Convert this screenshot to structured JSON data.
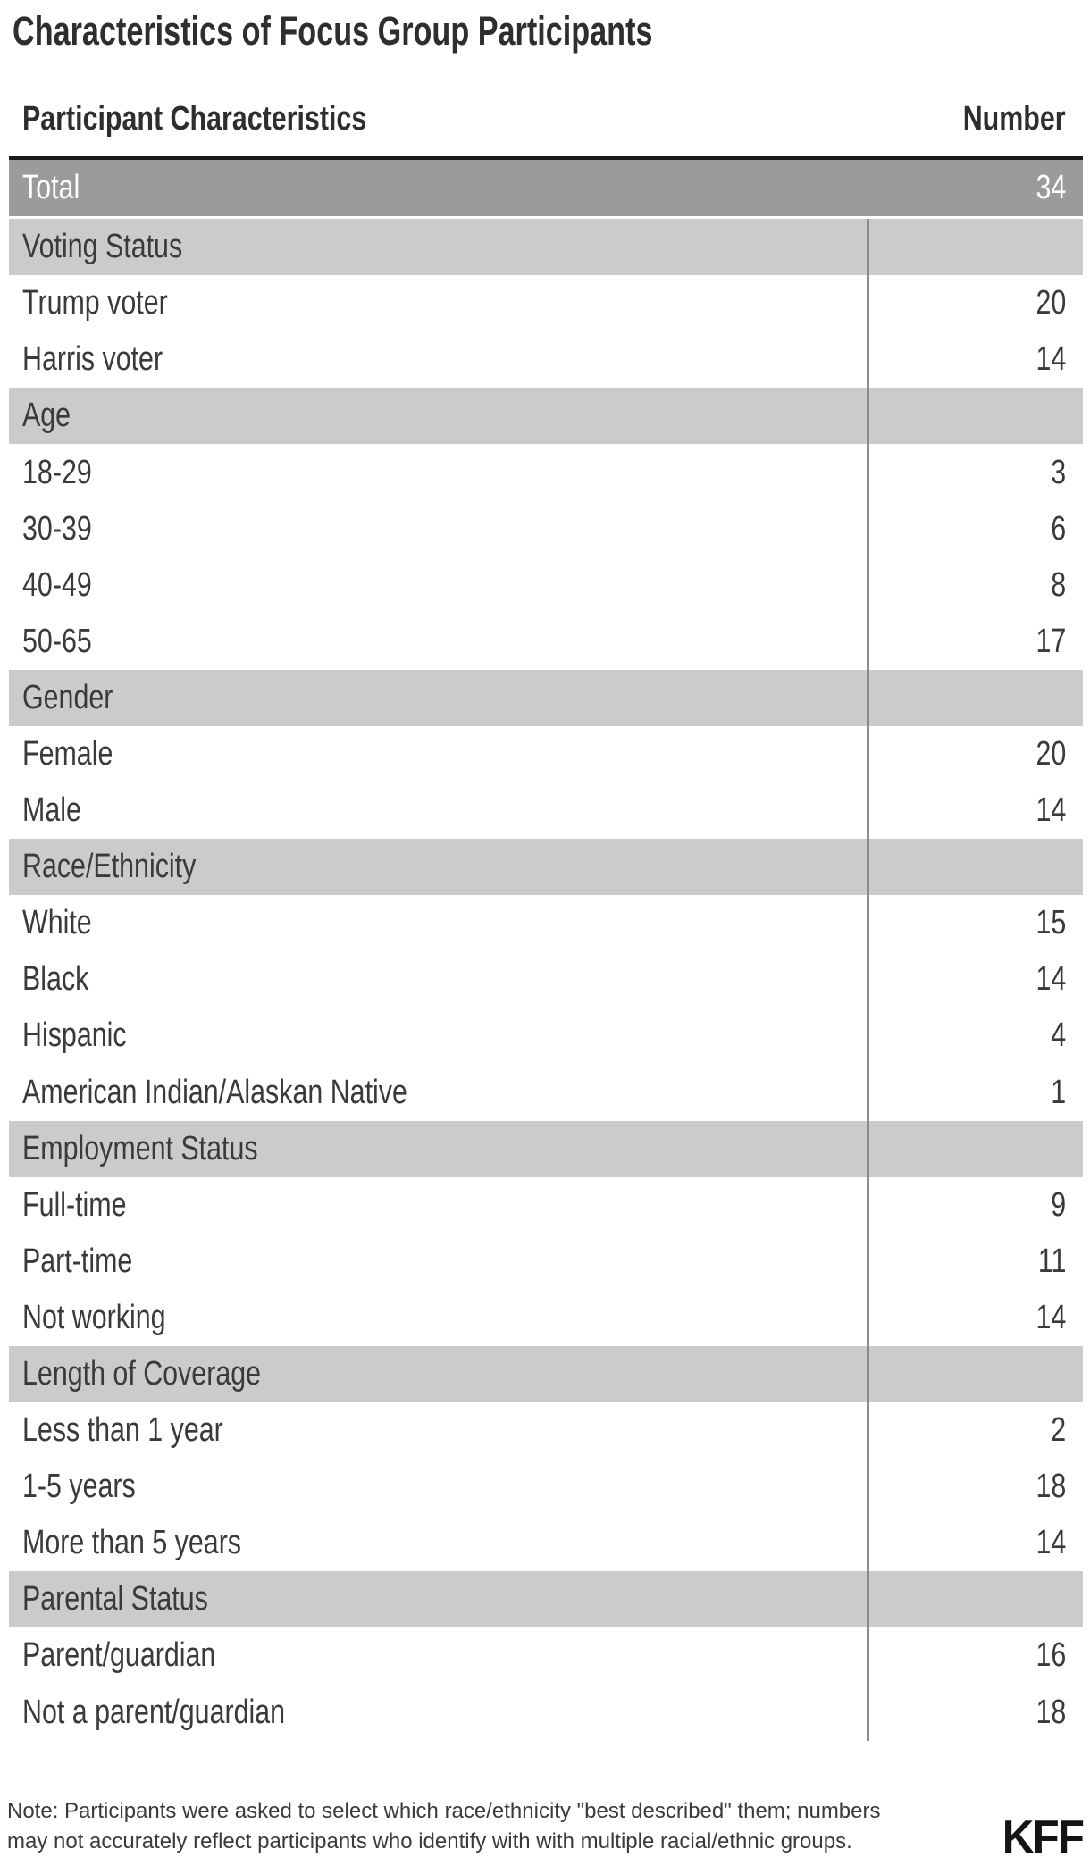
{
  "title": "Characteristics of Focus Group Participants",
  "table": {
    "col_label": "Participant Characteristics",
    "col_number": "Number",
    "total": {
      "label": "Total",
      "value": "34"
    },
    "rows": [
      {
        "type": "section",
        "label": "Voting Status",
        "value": ""
      },
      {
        "type": "data",
        "label": "Trump voter",
        "value": "20"
      },
      {
        "type": "data",
        "label": "Harris voter",
        "value": "14"
      },
      {
        "type": "section",
        "label": "Age",
        "value": ""
      },
      {
        "type": "data",
        "label": "18-29",
        "value": "3"
      },
      {
        "type": "data",
        "label": "30-39",
        "value": "6"
      },
      {
        "type": "data",
        "label": "40-49",
        "value": "8"
      },
      {
        "type": "data",
        "label": "50-65",
        "value": "17"
      },
      {
        "type": "section",
        "label": "Gender",
        "value": ""
      },
      {
        "type": "data",
        "label": "Female",
        "value": "20"
      },
      {
        "type": "data",
        "label": "Male",
        "value": "14"
      },
      {
        "type": "section",
        "label": "Race/Ethnicity",
        "value": ""
      },
      {
        "type": "data",
        "label": "White",
        "value": "15"
      },
      {
        "type": "data",
        "label": "Black",
        "value": "14"
      },
      {
        "type": "data",
        "label": "Hispanic",
        "value": "4"
      },
      {
        "type": "data",
        "label": "American Indian/Alaskan Native",
        "value": "1"
      },
      {
        "type": "section",
        "label": "Employment Status",
        "value": ""
      },
      {
        "type": "data",
        "label": "Full-time",
        "value": "9"
      },
      {
        "type": "data",
        "label": "Part-time",
        "value": "11"
      },
      {
        "type": "data",
        "label": "Not working",
        "value": "14"
      },
      {
        "type": "section",
        "label": "Length of Coverage",
        "value": ""
      },
      {
        "type": "data",
        "label": "Less than 1 year",
        "value": "2"
      },
      {
        "type": "data",
        "label": "1-5 years",
        "value": "18"
      },
      {
        "type": "data",
        "label": "More than 5 years",
        "value": "14"
      },
      {
        "type": "section",
        "label": "Parental Status",
        "value": ""
      },
      {
        "type": "data",
        "label": "Parent/guardian",
        "value": "16"
      },
      {
        "type": "data",
        "label": "Not a parent/guardian",
        "value": "18"
      }
    ]
  },
  "footer": {
    "note_line1": "Note: Participants were asked to select which race/ethnicity \"best described\" them; numbers",
    "note_line2": "may not accurately reflect participants who identify with with multiple racial/ethnic groups.",
    "logo": "KFF"
  },
  "colors": {
    "total_row_bg": "#9b9b9b",
    "section_row_bg": "#cbcbcb",
    "top_rule": "#1a1a1a",
    "vertical_rule": "#8c8c8c",
    "body_text": "#3a3a3a",
    "title_text": "#2e2e2e"
  },
  "chart_data": {
    "type": "table",
    "title": "Characteristics of Focus Group Participants",
    "columns": [
      "Participant Characteristics",
      "Number"
    ],
    "total": {
      "label": "Total",
      "value": 34
    },
    "sections": [
      {
        "name": "Voting Status",
        "rows": [
          [
            "Trump voter",
            20
          ],
          [
            "Harris voter",
            14
          ]
        ]
      },
      {
        "name": "Age",
        "rows": [
          [
            "18-29",
            3
          ],
          [
            "30-39",
            6
          ],
          [
            "40-49",
            8
          ],
          [
            "50-65",
            17
          ]
        ]
      },
      {
        "name": "Gender",
        "rows": [
          [
            "Female",
            20
          ],
          [
            "Male",
            14
          ]
        ]
      },
      {
        "name": "Race/Ethnicity",
        "rows": [
          [
            "White",
            15
          ],
          [
            "Black",
            14
          ],
          [
            "Hispanic",
            4
          ],
          [
            "American Indian/Alaskan Native",
            1
          ]
        ]
      },
      {
        "name": "Employment Status",
        "rows": [
          [
            "Full-time",
            9
          ],
          [
            "Part-time",
            11
          ],
          [
            "Not working",
            14
          ]
        ]
      },
      {
        "name": "Length of Coverage",
        "rows": [
          [
            "Less than 1 year",
            2
          ],
          [
            "1-5 years",
            18
          ],
          [
            "More than 5 years",
            14
          ]
        ]
      },
      {
        "name": "Parental Status",
        "rows": [
          [
            "Parent/guardian",
            16
          ],
          [
            "Not a parent/guardian",
            18
          ]
        ]
      }
    ],
    "note": "Note: Participants were asked to select which race/ethnicity \"best described\" them; numbers may not accurately reflect participants who identify with with multiple racial/ethnic groups.",
    "source_logo": "KFF"
  }
}
